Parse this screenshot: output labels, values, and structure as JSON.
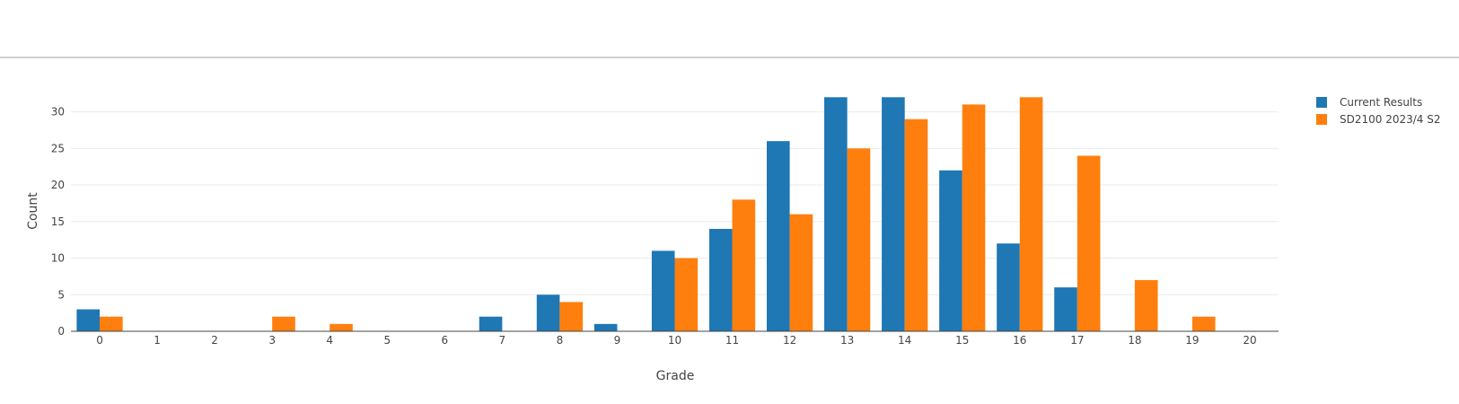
{
  "chart_data": {
    "type": "bar",
    "title": "",
    "xlabel": "Grade",
    "ylabel": "Count",
    "ylim": [
      0,
      34
    ],
    "yticks": [
      0,
      5,
      10,
      15,
      20,
      25,
      30
    ],
    "grid": true,
    "legend_position": "top-right",
    "categories": [
      "0",
      "1",
      "2",
      "3",
      "4",
      "5",
      "6",
      "7",
      "8",
      "9",
      "10",
      "11",
      "12",
      "13",
      "14",
      "15",
      "16",
      "17",
      "18",
      "19",
      "20"
    ],
    "series": [
      {
        "name": "Current Results",
        "color": "#1f77b4",
        "values": [
          3,
          0,
          0,
          0,
          0,
          0,
          0,
          2,
          5,
          1,
          11,
          14,
          26,
          32,
          32,
          22,
          12,
          6,
          0,
          0,
          0
        ]
      },
      {
        "name": "SD2100 2023/4 S2",
        "color": "#ff7f0e",
        "values": [
          2,
          0,
          0,
          2,
          1,
          0,
          0,
          0,
          4,
          0,
          10,
          18,
          16,
          25,
          29,
          31,
          32,
          24,
          7,
          2,
          0
        ]
      }
    ]
  }
}
